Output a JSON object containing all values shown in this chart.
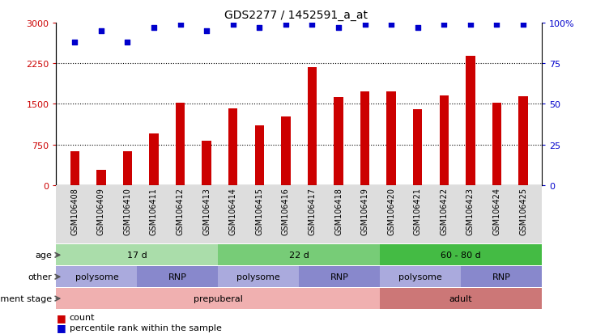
{
  "title": "GDS2277 / 1452591_a_at",
  "samples": [
    "GSM106408",
    "GSM106409",
    "GSM106410",
    "GSM106411",
    "GSM106412",
    "GSM106413",
    "GSM106414",
    "GSM106415",
    "GSM106416",
    "GSM106417",
    "GSM106418",
    "GSM106419",
    "GSM106420",
    "GSM106421",
    "GSM106422",
    "GSM106423",
    "GSM106424",
    "GSM106425"
  ],
  "counts": [
    620,
    280,
    620,
    950,
    1520,
    820,
    1420,
    1100,
    1270,
    2180,
    1620,
    1730,
    1730,
    1400,
    1650,
    2380,
    1520,
    1640
  ],
  "percentiles": [
    88,
    95,
    88,
    97,
    99,
    95,
    99,
    97,
    99,
    99,
    97,
    99,
    99,
    97,
    99,
    99,
    99,
    99
  ],
  "bar_color": "#cc0000",
  "dot_color": "#0000cc",
  "ylim_left": [
    0,
    3000
  ],
  "ylim_right": [
    0,
    100
  ],
  "yticks_left": [
    0,
    750,
    1500,
    2250,
    3000
  ],
  "yticks_right": [
    0,
    25,
    50,
    75,
    100
  ],
  "age_groups": [
    {
      "label": "17 d",
      "start": 0,
      "end": 6,
      "color": "#aaddaa"
    },
    {
      "label": "22 d",
      "start": 6,
      "end": 12,
      "color": "#77cc77"
    },
    {
      "label": "60 - 80 d",
      "start": 12,
      "end": 18,
      "color": "#44bb44"
    }
  ],
  "other_groups": [
    {
      "label": "polysome",
      "start": 0,
      "end": 3,
      "color": "#aaaadd"
    },
    {
      "label": "RNP",
      "start": 3,
      "end": 6,
      "color": "#8888cc"
    },
    {
      "label": "polysome",
      "start": 6,
      "end": 9,
      "color": "#aaaadd"
    },
    {
      "label": "RNP",
      "start": 9,
      "end": 12,
      "color": "#8888cc"
    },
    {
      "label": "polysome",
      "start": 12,
      "end": 15,
      "color": "#aaaadd"
    },
    {
      "label": "RNP",
      "start": 15,
      "end": 18,
      "color": "#8888cc"
    }
  ],
  "dev_groups": [
    {
      "label": "prepuberal",
      "start": 0,
      "end": 12,
      "color": "#f0b0b0"
    },
    {
      "label": "adult",
      "start": 12,
      "end": 18,
      "color": "#cc7777"
    }
  ],
  "xtick_bg": "#dddddd",
  "bar_width": 0.35,
  "dot_size": 18,
  "grid_lines": [
    750,
    1500,
    2250
  ],
  "row_labels": [
    "age",
    "other",
    "development stage"
  ],
  "legend_count_color": "#cc0000",
  "legend_pct_color": "#0000cc"
}
